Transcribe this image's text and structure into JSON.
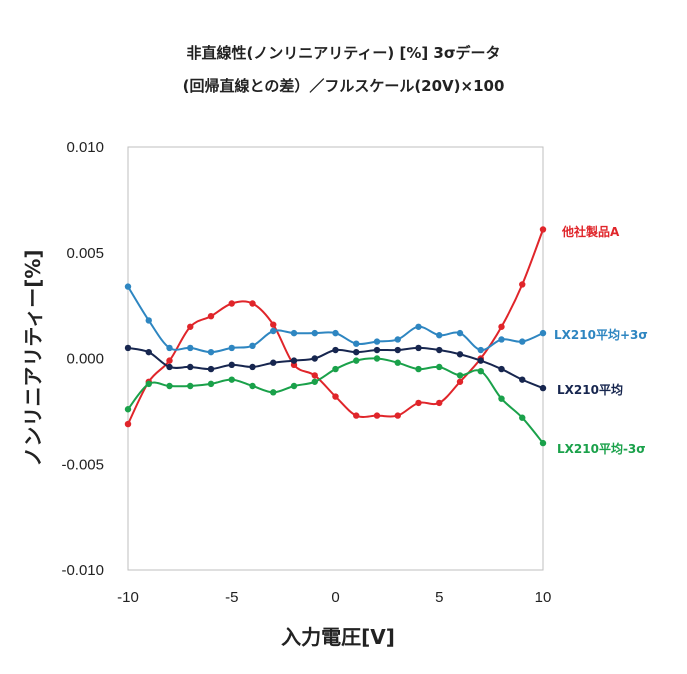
{
  "title_line1": "非直線性(ノンリニアリティー)  [%]     3σデータ",
  "title_line2": "(回帰直線との差）／フルスケール(20V)×100",
  "chart_data": {
    "type": "line",
    "xlabel": "入力電圧[V]",
    "ylabel": "ノンリニアリティー[%]",
    "xlim": [
      -10,
      10
    ],
    "ylim": [
      -0.01,
      0.01
    ],
    "xticks": [
      -10,
      -5,
      0,
      5,
      10
    ],
    "xtick_labels": [
      "-10",
      "-5",
      "0",
      "5",
      "10"
    ],
    "yticks": [
      0.01,
      0.005,
      0,
      -0.005,
      -0.01
    ],
    "ytick_labels": [
      "0.010",
      "0.005",
      "0.000",
      "-0.005",
      "-0.010"
    ],
    "grid": false,
    "legend": "inline labels at right end of each series",
    "x": [
      -10,
      -9,
      -8,
      -7,
      -6,
      -5,
      -4,
      -3,
      -2,
      -1,
      0,
      1,
      2,
      3,
      4,
      5,
      6,
      7,
      8,
      9,
      10
    ],
    "series": [
      {
        "name": "他社製品A",
        "color": "#e0252a",
        "values": [
          -0.0031,
          -0.0011,
          -0.0001,
          0.0015,
          0.002,
          0.0026,
          0.0026,
          0.0016,
          -0.0003,
          -0.0008,
          -0.0018,
          -0.0027,
          -0.0027,
          -0.0027,
          -0.0021,
          -0.0021,
          -0.0011,
          0.0,
          0.0015,
          0.0035,
          0.0061
        ]
      },
      {
        "name": "LX210平均+3σ",
        "color": "#2e86c1",
        "values": [
          0.0034,
          0.0018,
          0.0005,
          0.0005,
          0.0003,
          0.0005,
          0.0006,
          0.0013,
          0.0012,
          0.0012,
          0.0012,
          0.0007,
          0.0008,
          0.0009,
          0.0015,
          0.0011,
          0.0012,
          0.0004,
          0.0009,
          0.0008,
          0.0012
        ]
      },
      {
        "name": "LX210平均",
        "color": "#17264f",
        "values": [
          0.0005,
          0.0003,
          -0.0004,
          -0.0004,
          -0.0005,
          -0.0003,
          -0.0004,
          -0.0002,
          -0.0001,
          0.0,
          0.0004,
          0.0003,
          0.0004,
          0.0004,
          0.0005,
          0.0004,
          0.0002,
          -0.0001,
          -0.0005,
          -0.001,
          -0.0014
        ]
      },
      {
        "name": "LX210平均-3σ",
        "color": "#1aa14a",
        "values": [
          -0.0024,
          -0.0012,
          -0.0013,
          -0.0013,
          -0.0012,
          -0.001,
          -0.0013,
          -0.0016,
          -0.0013,
          -0.0011,
          -0.0005,
          -0.0001,
          0.0,
          -0.0002,
          -0.0005,
          -0.0004,
          -0.0008,
          -0.0006,
          -0.0019,
          -0.0028,
          -0.004
        ]
      }
    ]
  }
}
